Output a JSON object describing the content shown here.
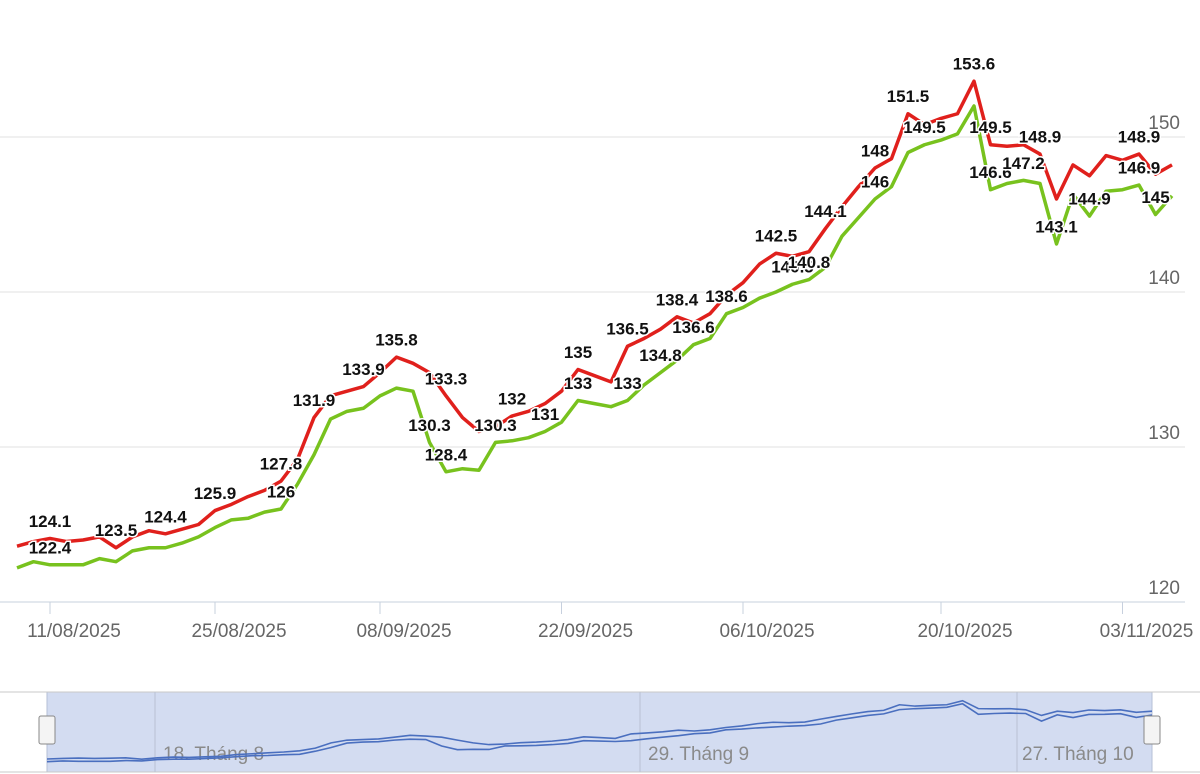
{
  "chart_data": {
    "type": "line",
    "categories": [
      null,
      null,
      "11/08/2025",
      null,
      null,
      null,
      null,
      null,
      null,
      null,
      null,
      null,
      "25/08/2025",
      null,
      null,
      null,
      null,
      null,
      null,
      null,
      null,
      null,
      "08/09/2025",
      null,
      null,
      null,
      null,
      null,
      null,
      null,
      null,
      null,
      null,
      "22/09/2025",
      null,
      null,
      null,
      null,
      null,
      null,
      null,
      null,
      null,
      null,
      "06/10/2025",
      null,
      null,
      null,
      null,
      null,
      null,
      null,
      null,
      null,
      null,
      null,
      "20/10/2025",
      null,
      null,
      null,
      null,
      null,
      null,
      null,
      null,
      null,
      null,
      "03/11/2025",
      null,
      null,
      null
    ],
    "series": [
      {
        "color": "#e0201c",
        "values": [
          123.6,
          123.9,
          124.1,
          123.9,
          124.0,
          124.2,
          123.5,
          124.2,
          124.6,
          124.4,
          124.7,
          125.0,
          125.9,
          126.3,
          126.8,
          127.2,
          127.8,
          129.2,
          131.9,
          133.3,
          133.6,
          133.9,
          134.8,
          135.8,
          135.4,
          134.8,
          133.3,
          131.9,
          131.0,
          131.3,
          132.0,
          132.3,
          132.8,
          133.6,
          135.0,
          134.6,
          134.2,
          136.5,
          137.0,
          137.6,
          138.4,
          138.0,
          138.6,
          139.8,
          140.6,
          141.8,
          142.5,
          142.3,
          142.6,
          144.1,
          145.5,
          146.8,
          148.0,
          148.6,
          151.5,
          150.8,
          151.2,
          151.5,
          153.6,
          149.5,
          149.4,
          149.5,
          148.9,
          146.0,
          148.2,
          147.5,
          148.8,
          148.5,
          148.9,
          147.6,
          148.2
        ],
        "value_labels": [
          null,
          null,
          "124.1",
          null,
          null,
          null,
          "123.5",
          null,
          null,
          "124.4",
          null,
          null,
          "125.9",
          null,
          null,
          null,
          "127.8",
          null,
          "131.9",
          null,
          null,
          "133.9",
          null,
          "135.8",
          null,
          null,
          "133.3",
          null,
          null,
          null,
          "132",
          null,
          null,
          null,
          "135",
          null,
          null,
          "136.5",
          null,
          null,
          "138.4",
          null,
          null,
          null,
          null,
          null,
          "142.5",
          null,
          null,
          "144.1",
          null,
          null,
          "148",
          null,
          "151.5",
          null,
          null,
          null,
          "153.6",
          "149.5",
          null,
          null,
          "148.9",
          null,
          null,
          null,
          null,
          null,
          "148.9",
          null,
          null
        ]
      },
      {
        "color": "#78c21e",
        "values": [
          122.2,
          122.6,
          122.4,
          122.4,
          122.4,
          122.8,
          122.6,
          123.3,
          123.5,
          123.5,
          123.8,
          124.2,
          124.8,
          125.3,
          125.4,
          125.8,
          126.0,
          127.6,
          129.5,
          131.8,
          132.3,
          132.5,
          133.3,
          133.8,
          133.6,
          130.3,
          128.4,
          128.6,
          128.5,
          130.3,
          130.4,
          130.6,
          131.0,
          131.6,
          133.0,
          132.8,
          132.6,
          133.0,
          134.0,
          134.8,
          135.6,
          136.6,
          137.0,
          138.6,
          139.0,
          139.6,
          140.0,
          140.5,
          140.8,
          141.6,
          143.6,
          144.8,
          146.0,
          146.8,
          149.0,
          149.5,
          149.8,
          150.2,
          152.0,
          146.6,
          147.0,
          147.2,
          147.0,
          143.1,
          146.3,
          144.9,
          146.5,
          146.6,
          146.9,
          145.0,
          146.2
        ],
        "value_labels": [
          null,
          null,
          "122.4",
          null,
          null,
          null,
          null,
          null,
          null,
          null,
          null,
          null,
          null,
          null,
          null,
          null,
          "126",
          null,
          null,
          null,
          null,
          null,
          null,
          null,
          null,
          "130.3",
          "128.4",
          null,
          null,
          "130.3",
          null,
          null,
          "131",
          null,
          "133",
          null,
          null,
          "133",
          null,
          "134.8",
          null,
          "136.6",
          null,
          "138.6",
          null,
          null,
          null,
          "140.5",
          "140.8",
          null,
          null,
          null,
          "146",
          null,
          null,
          "149.5",
          null,
          null,
          null,
          "146.6",
          null,
          "147.2",
          null,
          "143.1",
          null,
          "144.9",
          null,
          null,
          "146.9",
          "145",
          null
        ]
      }
    ],
    "ylim": [
      120,
      156
    ],
    "yticks": [
      120,
      130,
      140,
      150
    ],
    "grid": true,
    "navigator": {
      "labels": [
        "18. Tháng 8",
        "29. Tháng 9",
        "27. Tháng 10"
      ]
    }
  }
}
